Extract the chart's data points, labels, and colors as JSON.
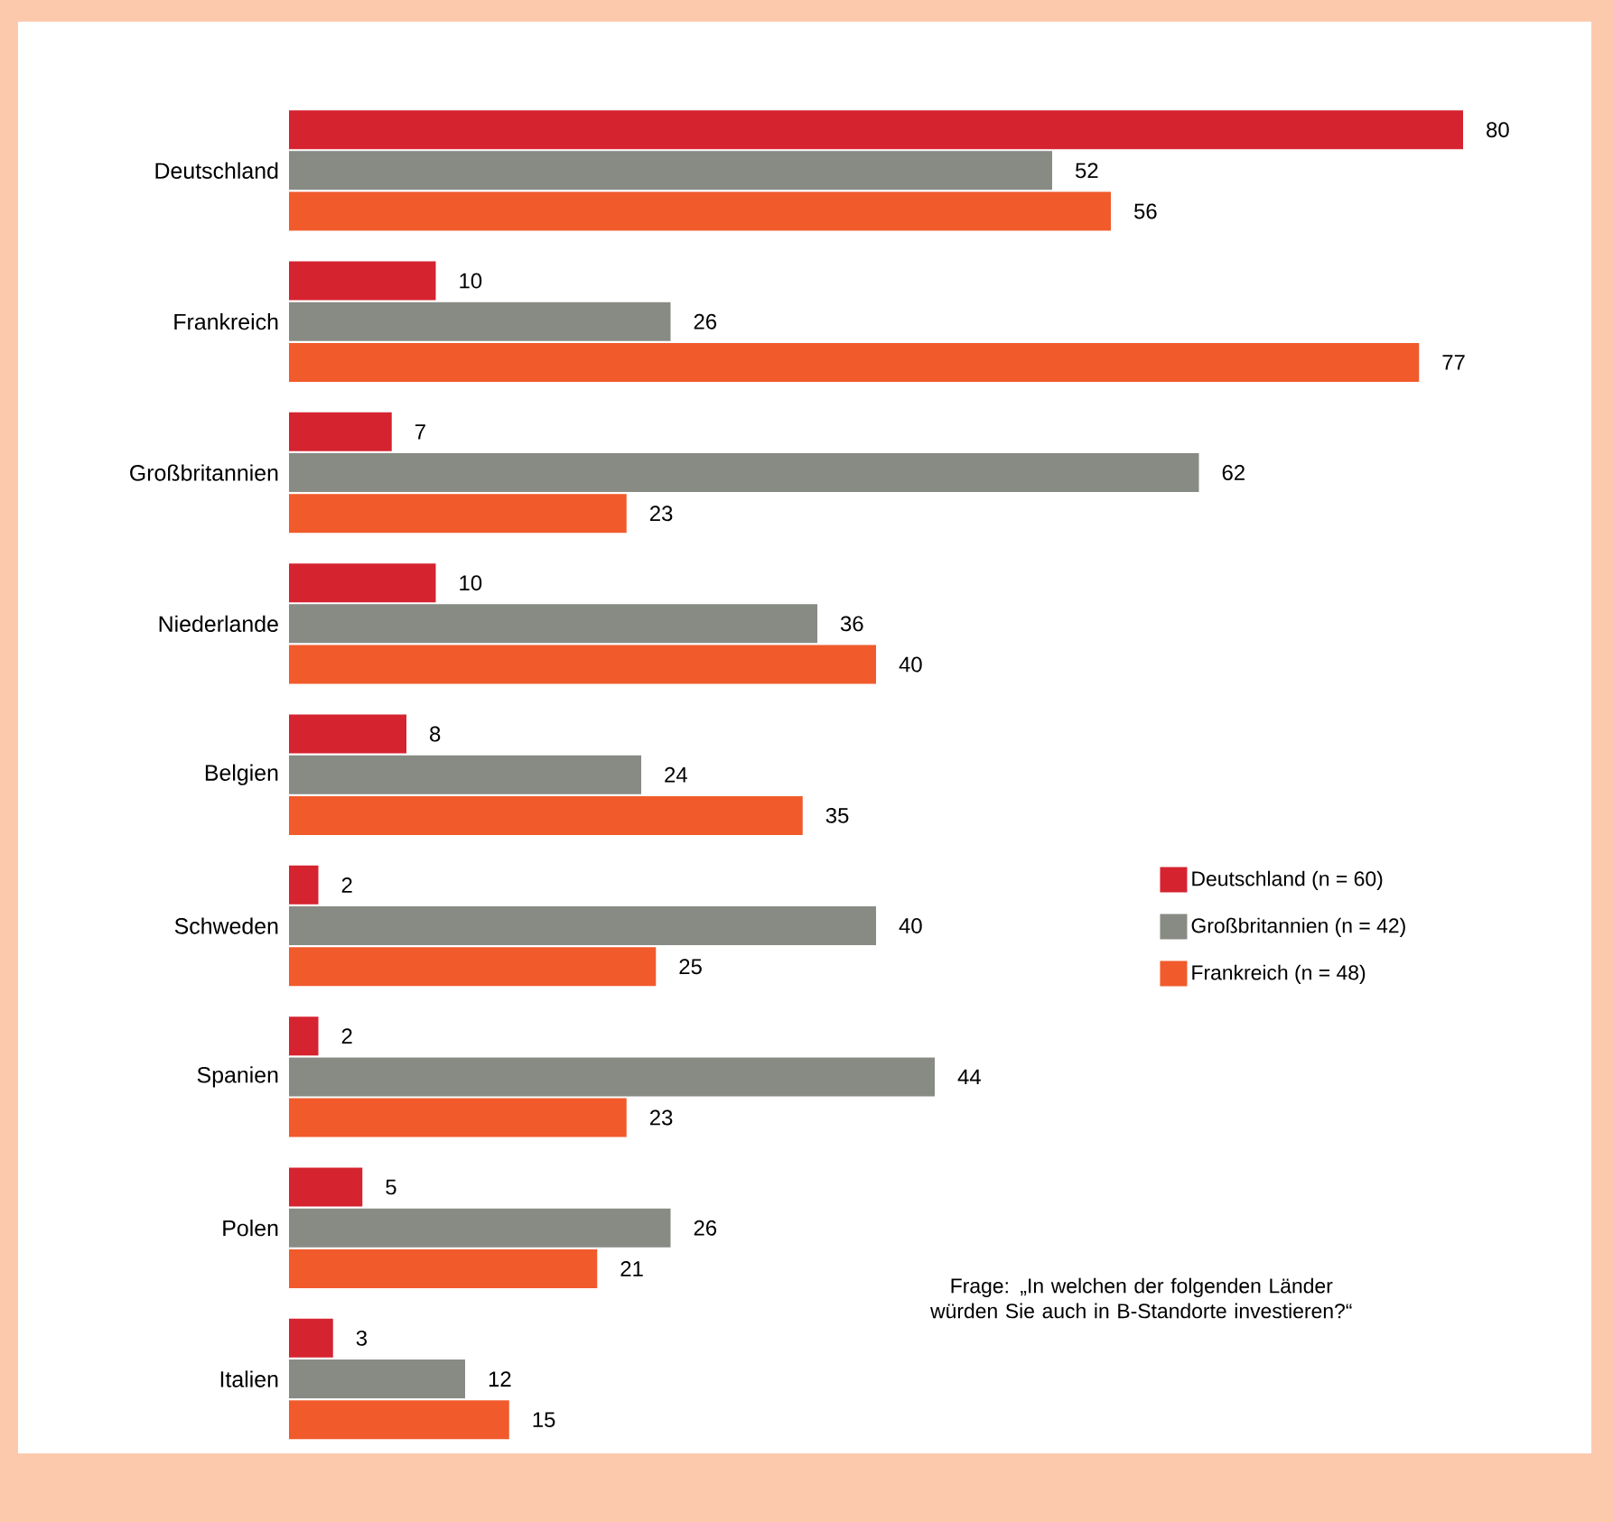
{
  "chart_data": {
    "type": "bar",
    "orientation": "horizontal",
    "categories": [
      "Deutschland",
      "Frankreich",
      "Großbritannien",
      "Niederlande",
      "Belgien",
      "Schweden",
      "Spanien",
      "Polen",
      "Italien"
    ],
    "series": [
      {
        "name": "Deutschland (n = 60)",
        "color": "#d52330",
        "values": [
          80,
          10,
          7,
          10,
          8,
          2,
          2,
          5,
          3
        ]
      },
      {
        "name": "Großbritannien (n = 42)",
        "color": "#878b84",
        "values": [
          52,
          26,
          62,
          36,
          24,
          40,
          44,
          26,
          12
        ]
      },
      {
        "name": "Frankreich (n = 48)",
        "color": "#f15a2b",
        "values": [
          56,
          77,
          23,
          40,
          35,
          25,
          23,
          21,
          15
        ]
      }
    ],
    "data_labels": true,
    "legend": "right",
    "tick_labels": "y",
    "annotations": [
      "Frage: „In welchen der folgenden Länder würden Sie auch in B-Standorte investieren?“"
    ]
  }
}
